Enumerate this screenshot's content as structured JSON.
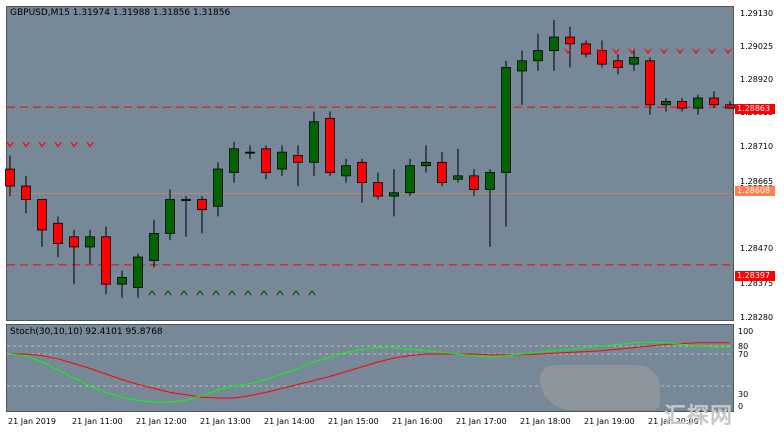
{
  "header": {
    "symbol_label": "GBPUSD,M15",
    "ohlc_label": "1.31974 1.31988 1.31856 1.31856"
  },
  "indicator": {
    "label": "Stoch(30,10,10) 92.4101 95.8768",
    "levels": [
      "100",
      "80",
      "70",
      "30",
      "0"
    ]
  },
  "colors": {
    "background": "#778899",
    "bull_candle": "#006400",
    "bear_candle": "#ff0000",
    "level_line": "#ff0000",
    "stoch_main": "#00ff00",
    "stoch_signal": "#ff0000",
    "price_tag": "#ff0000",
    "mid_tag": "#ff7f50"
  },
  "price_axis": [
    "1.29130",
    "1.29025",
    "1.28920",
    "1.28863",
    "1.28815",
    "1.28710",
    "1.28665",
    "1.28560",
    "1.28470",
    "1.28397",
    "1.28375",
    "1.28280"
  ],
  "tags": {
    "upper": "1.28863",
    "mid": "1.28608",
    "lower": "1.28397"
  },
  "time_axis": [
    "21 Jan 2019",
    "21 Jan 11:00",
    "21 Jan 12:00",
    "21 Jan 13:00",
    "21 Jan 14:00",
    "21 Jan 15:00",
    "21 Jan 16:00",
    "21 Jan 17:00",
    "21 Jan 18:00",
    "21 Jan 19:00",
    "21 Jan 20:00"
  ],
  "watermark": "汇探网",
  "chart_data": {
    "type": "candlestick",
    "symbol": "GBPUSD",
    "timeframe": "M15",
    "ylim": [
      1.2824,
      1.2915
    ],
    "candles": [
      {
        "o": 1.2868,
        "h": 1.2872,
        "l": 1.286,
        "c": 1.2863
      },
      {
        "o": 1.2863,
        "h": 1.2866,
        "l": 1.2855,
        "c": 1.2859
      },
      {
        "o": 1.2859,
        "h": 1.2859,
        "l": 1.2845,
        "c": 1.285
      },
      {
        "o": 1.2852,
        "h": 1.2854,
        "l": 1.2842,
        "c": 1.2846
      },
      {
        "o": 1.2848,
        "h": 1.285,
        "l": 1.2834,
        "c": 1.2845
      },
      {
        "o": 1.2845,
        "h": 1.285,
        "l": 1.284,
        "c": 1.2848
      },
      {
        "o": 1.2848,
        "h": 1.2851,
        "l": 1.2831,
        "c": 1.2834
      },
      {
        "o": 1.2834,
        "h": 1.2838,
        "l": 1.283,
        "c": 1.2836
      },
      {
        "o": 1.2833,
        "h": 1.2843,
        "l": 1.283,
        "c": 1.2842
      },
      {
        "o": 1.2841,
        "h": 1.2853,
        "l": 1.2839,
        "c": 1.2849
      },
      {
        "o": 1.2849,
        "h": 1.2862,
        "l": 1.2847,
        "c": 1.2859
      },
      {
        "o": 1.2859,
        "h": 1.286,
        "l": 1.2848,
        "c": 1.2859
      },
      {
        "o": 1.2859,
        "h": 1.286,
        "l": 1.2849,
        "c": 1.2856
      },
      {
        "o": 1.2857,
        "h": 1.287,
        "l": 1.2854,
        "c": 1.2868
      },
      {
        "o": 1.2867,
        "h": 1.2876,
        "l": 1.2864,
        "c": 1.2874
      },
      {
        "o": 1.2873,
        "h": 1.2875,
        "l": 1.2871,
        "c": 1.2873
      },
      {
        "o": 1.2874,
        "h": 1.2875,
        "l": 1.2865,
        "c": 1.2867
      },
      {
        "o": 1.2868,
        "h": 1.2875,
        "l": 1.2866,
        "c": 1.2873
      },
      {
        "o": 1.2872,
        "h": 1.2875,
        "l": 1.2863,
        "c": 1.287
      },
      {
        "o": 1.287,
        "h": 1.2885,
        "l": 1.2866,
        "c": 1.2882
      },
      {
        "o": 1.2883,
        "h": 1.2885,
        "l": 1.2866,
        "c": 1.2867
      },
      {
        "o": 1.2866,
        "h": 1.2871,
        "l": 1.2864,
        "c": 1.2869
      },
      {
        "o": 1.287,
        "h": 1.2871,
        "l": 1.2858,
        "c": 1.2864
      },
      {
        "o": 1.2864,
        "h": 1.2867,
        "l": 1.2859,
        "c": 1.286
      },
      {
        "o": 1.286,
        "h": 1.2868,
        "l": 1.2854,
        "c": 1.2861
      },
      {
        "o": 1.2861,
        "h": 1.2871,
        "l": 1.286,
        "c": 1.2869
      },
      {
        "o": 1.2869,
        "h": 1.2875,
        "l": 1.2867,
        "c": 1.287
      },
      {
        "o": 1.287,
        "h": 1.2873,
        "l": 1.2863,
        "c": 1.2864
      },
      {
        "o": 1.2865,
        "h": 1.2874,
        "l": 1.2864,
        "c": 1.2866
      },
      {
        "o": 1.2866,
        "h": 1.2868,
        "l": 1.286,
        "c": 1.2862
      },
      {
        "o": 1.2862,
        "h": 1.2868,
        "l": 1.2845,
        "c": 1.2867
      },
      {
        "o": 1.2867,
        "h": 1.29,
        "l": 1.2851,
        "c": 1.2898
      },
      {
        "o": 1.2897,
        "h": 1.2903,
        "l": 1.2887,
        "c": 1.29
      },
      {
        "o": 1.29,
        "h": 1.2908,
        "l": 1.2897,
        "c": 1.2903
      },
      {
        "o": 1.2903,
        "h": 1.2912,
        "l": 1.2897,
        "c": 1.2907
      },
      {
        "o": 1.2907,
        "h": 1.291,
        "l": 1.2898,
        "c": 1.2905
      },
      {
        "o": 1.2905,
        "h": 1.2906,
        "l": 1.2901,
        "c": 1.2902
      },
      {
        "o": 1.2903,
        "h": 1.2906,
        "l": 1.2898,
        "c": 1.2899
      },
      {
        "o": 1.29,
        "h": 1.2902,
        "l": 1.2896,
        "c": 1.2898
      },
      {
        "o": 1.2899,
        "h": 1.2903,
        "l": 1.2897,
        "c": 1.2901
      },
      {
        "o": 1.29,
        "h": 1.2901,
        "l": 1.2884,
        "c": 1.2887
      },
      {
        "o": 1.2887,
        "h": 1.2889,
        "l": 1.2885,
        "c": 1.2888
      },
      {
        "o": 1.2888,
        "h": 1.2889,
        "l": 1.2885,
        "c": 1.2886
      },
      {
        "o": 1.2886,
        "h": 1.289,
        "l": 1.2884,
        "c": 1.2889
      },
      {
        "o": 1.2889,
        "h": 1.2891,
        "l": 1.2886,
        "c": 1.2887
      },
      {
        "o": 1.2887,
        "h": 1.2888,
        "l": 1.2886,
        "c": 1.2886
      }
    ],
    "levels": [
      1.28863,
      1.28608,
      1.28397
    ],
    "stochastic": {
      "name": "Stoch(30,10,10)",
      "main": [
        70,
        68,
        60,
        50,
        40,
        30,
        22,
        16,
        12,
        10,
        10,
        12,
        18,
        25,
        30,
        33,
        38,
        45,
        52,
        60,
        66,
        72,
        76,
        78,
        78,
        76,
        74,
        72,
        70,
        68,
        66,
        68,
        70,
        72,
        74,
        76,
        78,
        80,
        82,
        84,
        85,
        84,
        82,
        80,
        79,
        78
      ],
      "signal": [
        70,
        70,
        68,
        64,
        58,
        52,
        45,
        38,
        32,
        27,
        22,
        19,
        16,
        15,
        15,
        18,
        22,
        27,
        32,
        37,
        42,
        48,
        54,
        60,
        65,
        68,
        70,
        70,
        70,
        70,
        69,
        69,
        69,
        70,
        71,
        72,
        73,
        74,
        76,
        78,
        80,
        82,
        83,
        84,
        84,
        84
      ],
      "levels": [
        80,
        70,
        30
      ]
    },
    "arrows_down_left": [
      1.2875,
      1.2875,
      1.2875,
      1.2875,
      1.2875,
      1.2875
    ],
    "arrows_up_count": 11,
    "arrows_down_right_count": 11
  }
}
